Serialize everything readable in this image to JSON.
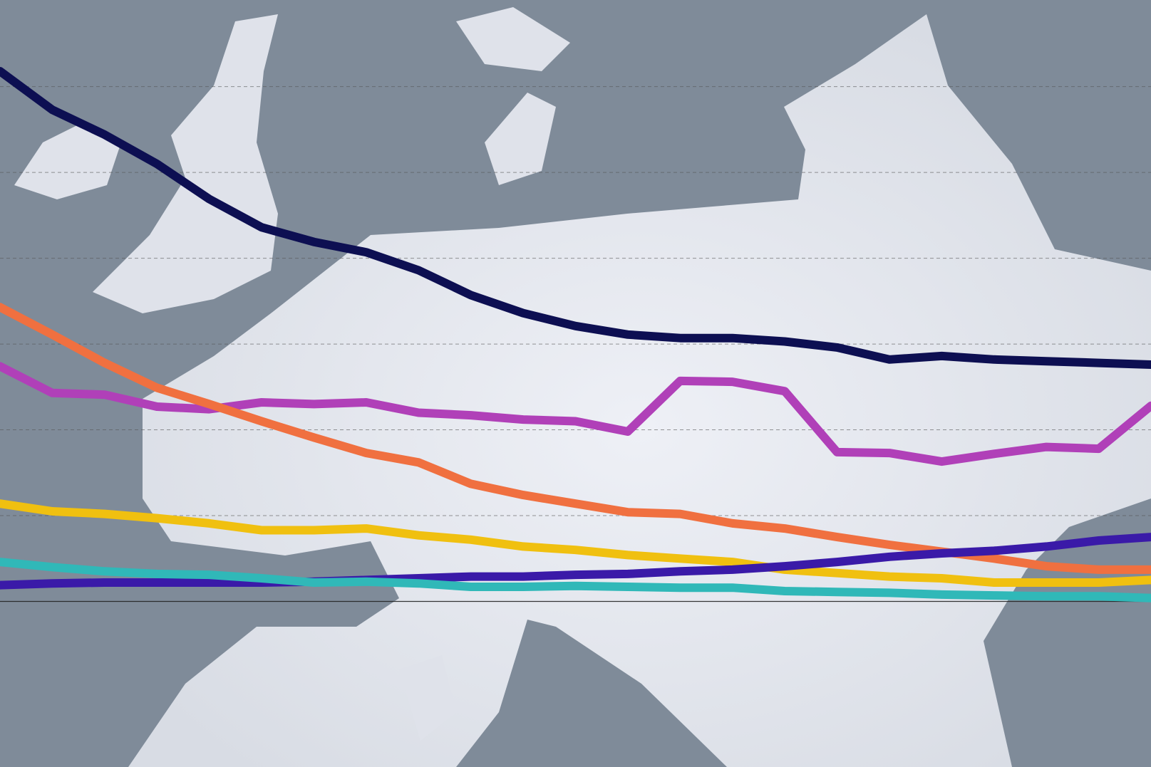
{
  "chart_data": {
    "type": "line",
    "categories": [
      null,
      null,
      null,
      null,
      null,
      null,
      null,
      null,
      null,
      null,
      null,
      null,
      null,
      null,
      null,
      null,
      null,
      null,
      null,
      null,
      null,
      null,
      null
    ],
    "ylim": [
      -1.93,
      7.01
    ],
    "yticks": [
      0,
      1,
      2,
      3,
      4,
      5,
      6
    ],
    "grid": true,
    "series": [
      {
        "color": "#0d0f52",
        "values": [
          6.18,
          5.73,
          5.44,
          5.1,
          4.69,
          4.36,
          4.19,
          4.07,
          3.86,
          3.57,
          3.36,
          3.21,
          3.11,
          3.07,
          3.07,
          3.03,
          2.96,
          2.82,
          2.86,
          2.82,
          2.8,
          2.78,
          2.76
        ]
      },
      {
        "color": "#b040b8",
        "values": [
          2.74,
          2.43,
          2.41,
          2.27,
          2.24,
          2.32,
          2.3,
          2.32,
          2.2,
          2.17,
          2.12,
          2.1,
          1.98,
          2.57,
          2.56,
          2.45,
          1.74,
          1.73,
          1.63,
          1.72,
          1.8,
          1.78,
          2.28
        ]
      },
      {
        "color": "#f07040",
        "values": [
          3.43,
          3.11,
          2.78,
          2.49,
          2.3,
          2.1,
          1.91,
          1.73,
          1.62,
          1.37,
          1.24,
          1.14,
          1.04,
          1.02,
          0.91,
          0.85,
          0.75,
          0.66,
          0.58,
          0.5,
          0.41,
          0.37,
          0.37
        ]
      },
      {
        "color": "#f0c010",
        "values": [
          1.14,
          1.05,
          1.02,
          0.97,
          0.91,
          0.83,
          0.83,
          0.85,
          0.77,
          0.72,
          0.64,
          0.6,
          0.54,
          0.5,
          0.46,
          0.37,
          0.33,
          0.29,
          0.27,
          0.22,
          0.22,
          0.22,
          0.25
        ]
      },
      {
        "color": "#3a1aa8",
        "values": [
          0.19,
          0.21,
          0.22,
          0.22,
          0.22,
          0.22,
          0.23,
          0.25,
          0.27,
          0.29,
          0.29,
          0.31,
          0.32,
          0.35,
          0.37,
          0.41,
          0.46,
          0.52,
          0.56,
          0.59,
          0.64,
          0.71,
          0.75
        ]
      },
      {
        "color": "#30b8b8",
        "values": [
          0.46,
          0.4,
          0.35,
          0.32,
          0.31,
          0.27,
          0.22,
          0.23,
          0.21,
          0.17,
          0.17,
          0.18,
          0.17,
          0.16,
          0.16,
          0.12,
          0.11,
          0.1,
          0.08,
          0.07,
          0.06,
          0.06,
          0.04
        ]
      }
    ]
  }
}
